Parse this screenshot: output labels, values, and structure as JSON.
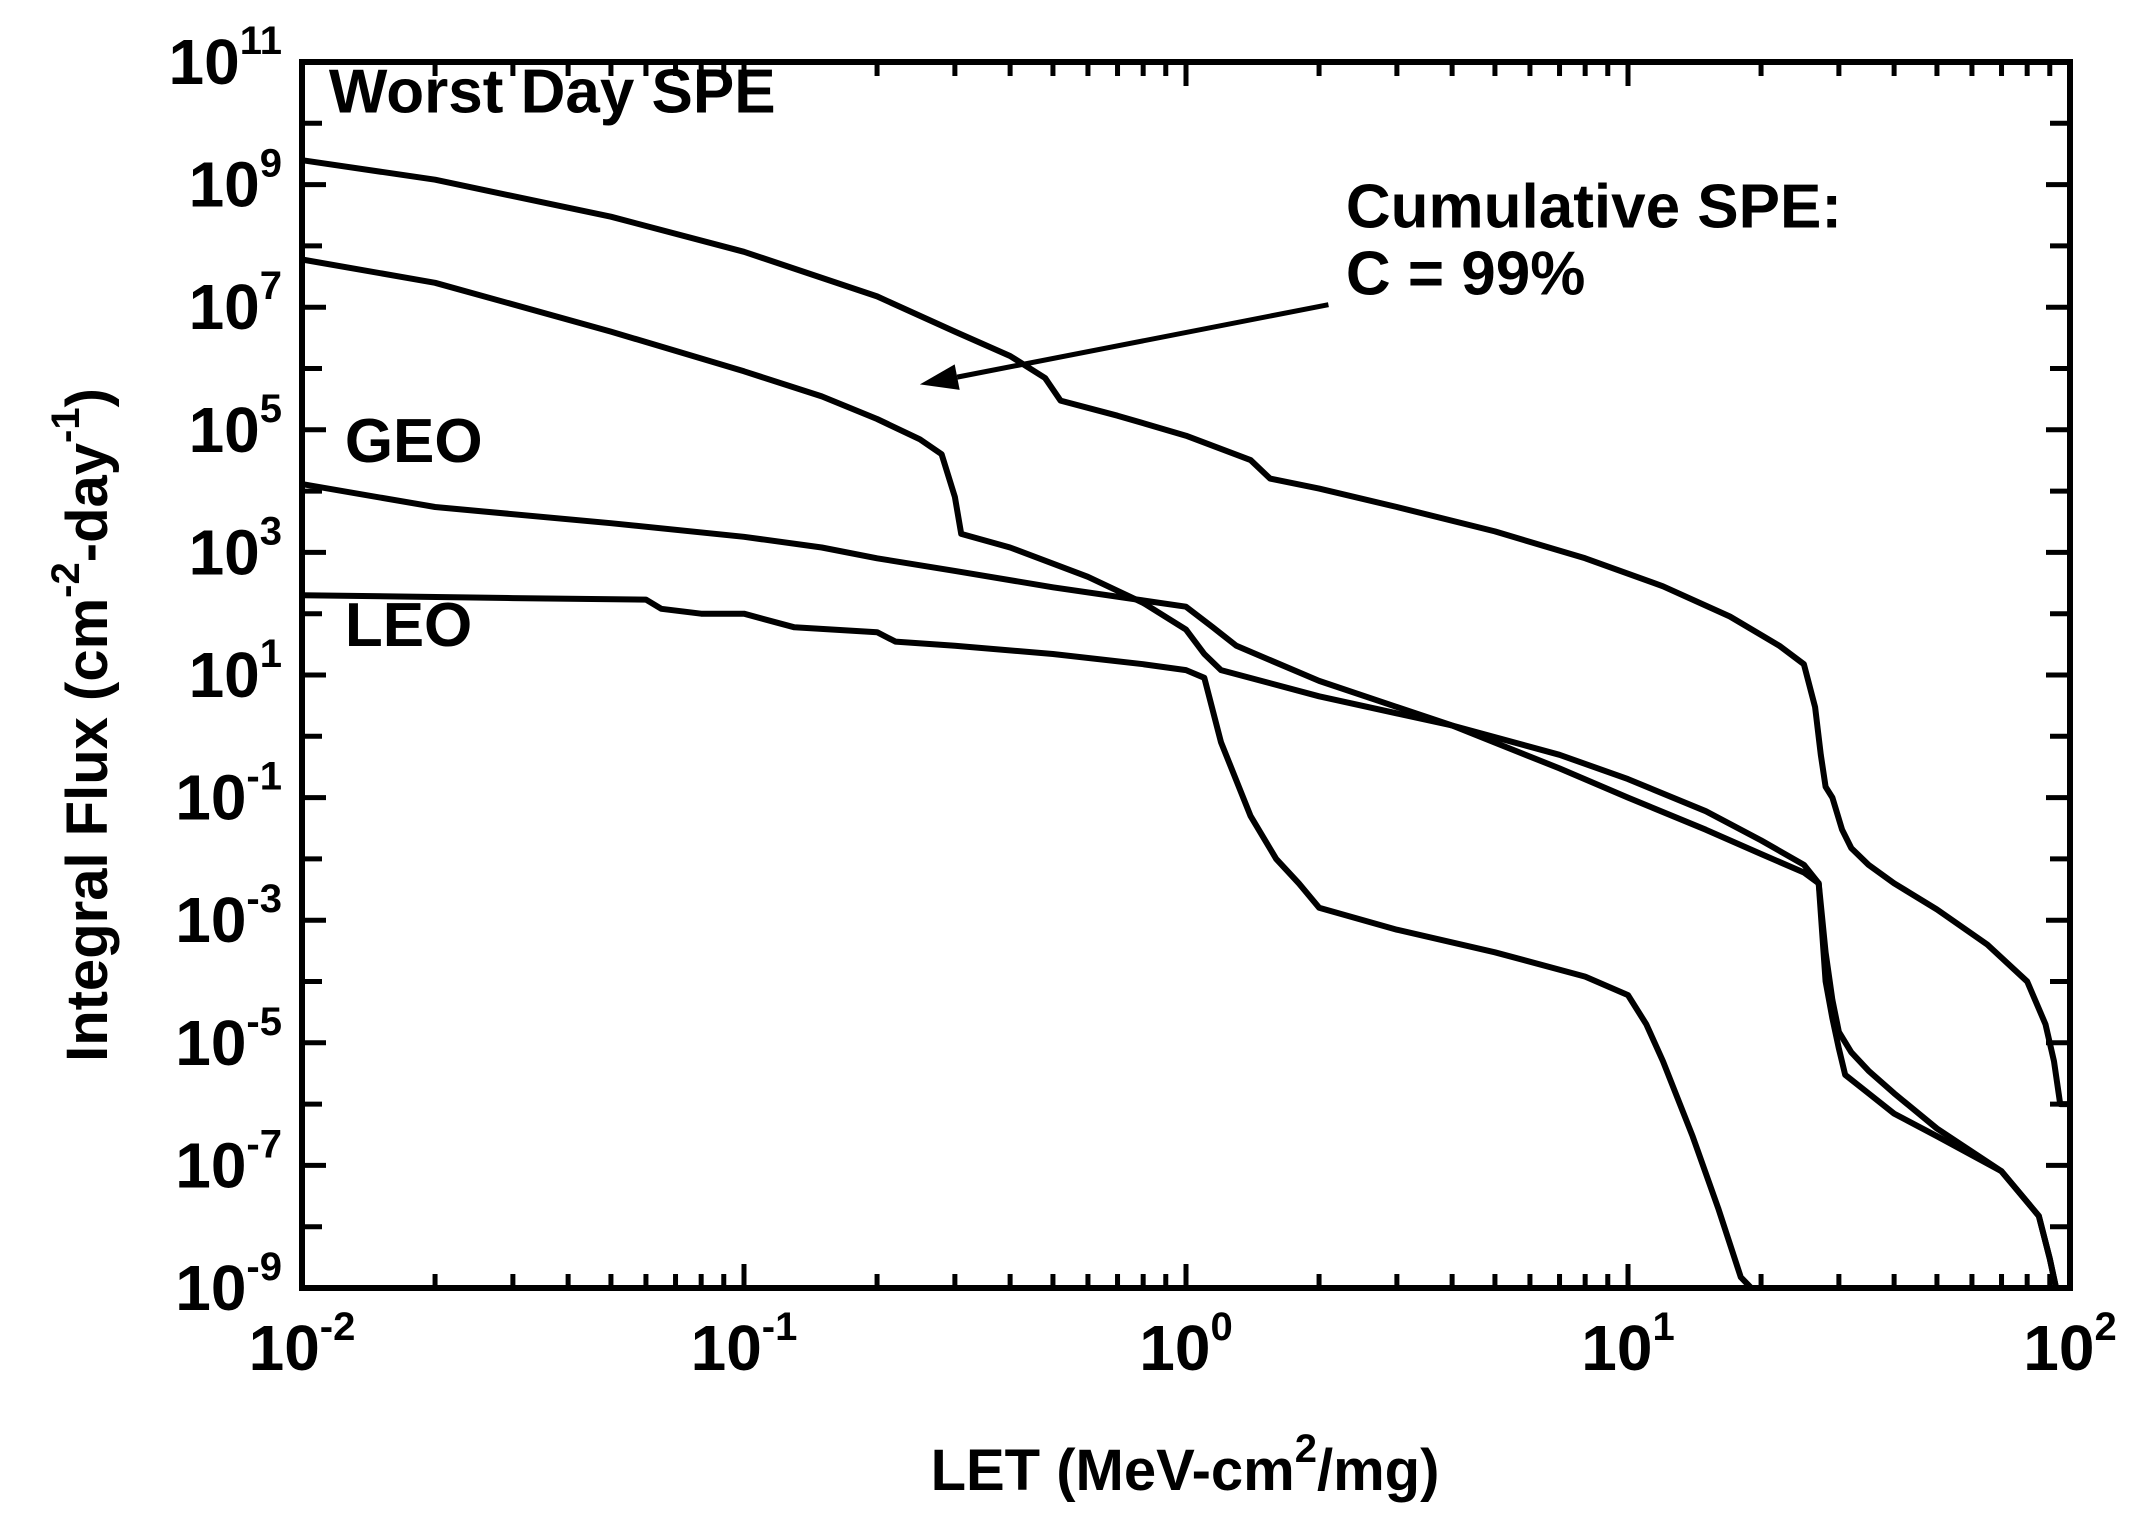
{
  "chart_data": {
    "type": "line",
    "title": "",
    "xlabel": {
      "prefix": "LET (MeV-cm",
      "sup": "2",
      "suffix": "/mg)"
    },
    "ylabel": {
      "prefix": "Integral Flux (cm",
      "sup1": "-2",
      "mid": "-day",
      "sup2": "-1",
      "suffix": ")"
    },
    "xscale": "log",
    "yscale": "log",
    "xlim": [
      0.01,
      100
    ],
    "ylim": [
      1e-09,
      100000000000.0
    ],
    "x_ticks": [
      {
        "base": "10",
        "exp": "-2",
        "value": 0.01
      },
      {
        "base": "10",
        "exp": "-1",
        "value": 0.1
      },
      {
        "base": "10",
        "exp": "0",
        "value": 1
      },
      {
        "base": "10",
        "exp": "1",
        "value": 10
      },
      {
        "base": "10",
        "exp": "2",
        "value": 100
      }
    ],
    "y_ticks": [
      {
        "base": "10",
        "exp": "-9",
        "value": 1e-09
      },
      {
        "base": "10",
        "exp": "-7",
        "value": 1e-07
      },
      {
        "base": "10",
        "exp": "-5",
        "value": 1e-05
      },
      {
        "base": "10",
        "exp": "-3",
        "value": 0.001
      },
      {
        "base": "10",
        "exp": "-1",
        "value": 0.1
      },
      {
        "base": "10",
        "exp": "1",
        "value": 10.0
      },
      {
        "base": "10",
        "exp": "3",
        "value": 1000.0
      },
      {
        "base": "10",
        "exp": "5",
        "value": 100000.0
      },
      {
        "base": "10",
        "exp": "7",
        "value": 10000000.0
      },
      {
        "base": "10",
        "exp": "9",
        "value": 1000000000.0
      },
      {
        "base": "10",
        "exp": "11",
        "value": 100000000000.0
      }
    ],
    "grid": false,
    "series": [
      {
        "name": "Worst Day SPE",
        "x": [
          0.01,
          0.02,
          0.05,
          0.1,
          0.2,
          0.3,
          0.4,
          0.48,
          0.52,
          0.7,
          1.0,
          1.4,
          1.55,
          2.0,
          3.0,
          5.0,
          8.0,
          12.0,
          17.0,
          22.0,
          25.0,
          26.5,
          27.3,
          28.0,
          29.0,
          30.5,
          32.0,
          35.0,
          40.0,
          50.0,
          65.0,
          80.0,
          88.0,
          92.0,
          95.0,
          100.0
        ],
        "y": [
          2500000000.0,
          1200000000.0,
          300000000.0,
          80000000.0,
          15000000.0,
          4000000.0,
          1600000.0,
          700000.0,
          300000.0,
          170000.0,
          80000.0,
          32000.0,
          16000.0,
          11000.0,
          5500.0,
          2200.0,
          800.0,
          280.0,
          90,
          30,
          15,
          3.0,
          0.5,
          0.15,
          0.1,
          0.03,
          0.015,
          0.008,
          0.004,
          0.0015,
          0.0004,
          0.0001,
          2e-05,
          5e-06,
          1e-06,
          1e-06
        ]
      },
      {
        "name": "Cumulative SPE: C = 99%",
        "x": [
          0.01,
          0.02,
          0.05,
          0.1,
          0.15,
          0.2,
          0.25,
          0.28,
          0.3,
          0.31,
          0.4,
          0.6,
          0.8,
          1.0,
          1.1,
          1.2,
          2.0,
          4.0,
          7.0,
          10.0,
          15.0,
          20.0,
          25.0,
          27.0,
          28.0,
          29.0,
          30.0,
          31.0,
          35.0,
          40.0,
          50.0,
          70.0,
          85.0,
          90.0,
          93.0,
          100.0
        ],
        "y": [
          60000000.0,
          25000000.0,
          4000000.0,
          900000.0,
          350000.0,
          150000.0,
          70000.0,
          40000.0,
          8000.0,
          2000.0,
          1200.0,
          400.0,
          150.0,
          55,
          22,
          12,
          4.5,
          1.5,
          0.5,
          0.2,
          0.06,
          0.02,
          0.008,
          0.004,
          0.0001,
          2.5e-05,
          8e-06,
          3e-06,
          1.5e-06,
          7e-07,
          3e-07,
          8e-08,
          1.5e-08,
          3e-09,
          1e-09,
          1e-09
        ]
      },
      {
        "name": "GEO",
        "x": [
          0.01,
          0.02,
          0.05,
          0.1,
          0.15,
          0.2,
          0.3,
          0.5,
          1.0,
          1.15,
          1.3,
          2.0,
          4.0,
          7.0,
          10.0,
          15.0,
          20.0,
          25.0,
          27.0,
          28.0,
          29.0,
          30.0,
          32.0,
          35.0,
          40.0,
          50.0,
          70.0,
          85.0,
          90.0,
          93.0,
          100.0
        ],
        "y": [
          13000.0,
          5500.0,
          3000.0,
          1800.0,
          1200.0,
          800.0,
          500.0,
          270.0,
          130.0,
          60,
          30,
          8.0,
          1.5,
          0.3,
          0.1,
          0.03,
          0.012,
          0.006,
          0.004,
          0.0003,
          5e-05,
          1.5e-05,
          7e-06,
          3.5e-06,
          1.5e-06,
          4e-07,
          8e-08,
          1.5e-08,
          3e-09,
          1e-09,
          1e-09
        ]
      },
      {
        "name": "LEO",
        "x": [
          0.01,
          0.03,
          0.06,
          0.065,
          0.08,
          0.1,
          0.12,
          0.13,
          0.2,
          0.22,
          0.3,
          0.5,
          0.8,
          1.0,
          1.1,
          1.2,
          1.4,
          1.6,
          1.8,
          2.0,
          3.0,
          5.0,
          8.0,
          10.0,
          11.0,
          12.0,
          14.0,
          16.0,
          18.0,
          19.0
        ],
        "y": [
          200,
          180,
          170,
          120,
          100,
          100,
          70,
          60,
          50,
          35,
          30,
          22,
          15,
          12,
          9.0,
          0.8,
          0.05,
          0.01,
          0.004,
          0.0016,
          0.0007,
          0.0003,
          0.00012,
          6e-05,
          2e-05,
          5e-06,
          3e-07,
          2e-08,
          1.5e-09,
          1e-09
        ]
      }
    ],
    "annotations": [
      {
        "text": "Worst Day SPE",
        "x": 0.0115,
        "y": 15000000000.0
      },
      {
        "text": "Cumulative SPE:",
        "x": 2.3,
        "y": 200000000.0
      },
      {
        "text": "C = 99%",
        "x": 2.3,
        "y": 16000000.0
      },
      {
        "text": "GEO",
        "x": 0.0125,
        "y": 30000.0
      },
      {
        "text": "LEO",
        "x": 0.0125,
        "y": 30
      }
    ],
    "arrow": {
      "from": [
        2.1,
        11000000.0
      ],
      "to": [
        0.25,
        550000.0
      ]
    }
  }
}
